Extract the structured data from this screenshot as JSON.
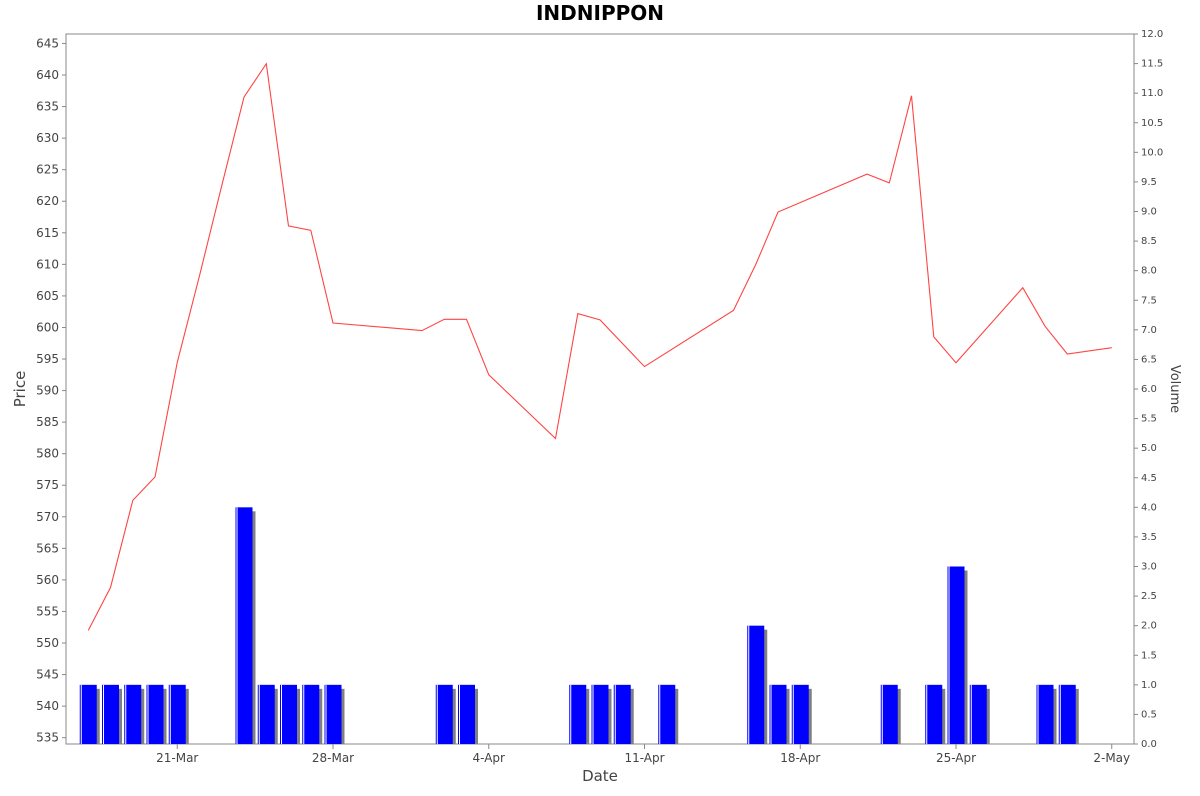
{
  "chart_data": {
    "type": "line",
    "title": "INDNIPPON",
    "xlabel": "Date",
    "ylabel": "Price",
    "y2label": "Volume",
    "x_ticks": [
      {
        "label": "21-Mar",
        "date": "2023-03-21"
      },
      {
        "label": "28-Mar",
        "date": "2023-03-28"
      },
      {
        "label": "4-Apr",
        "date": "2023-04-04"
      },
      {
        "label": "11-Apr",
        "date": "2023-04-11"
      },
      {
        "label": "18-Apr",
        "date": "2023-04-18"
      },
      {
        "label": "25-Apr",
        "date": "2023-04-25"
      },
      {
        "label": "2-May",
        "date": "2023-05-02"
      }
    ],
    "x_range": [
      "2023-03-16",
      "2023-05-03"
    ],
    "price_axis": {
      "min": 534,
      "max": 646.5,
      "ticks": [
        535,
        540,
        545,
        550,
        555,
        560,
        565,
        570,
        575,
        580,
        585,
        590,
        595,
        600,
        605,
        610,
        615,
        620,
        625,
        630,
        635,
        640,
        645
      ]
    },
    "volume_axis": {
      "min": 0,
      "max": 12,
      "ticks": [
        "0.0",
        "0.5",
        "1.0",
        "1.5",
        "2.0",
        "2.5",
        "3.0",
        "3.5",
        "4.0",
        "4.5",
        "5.0",
        "5.5",
        "6.0",
        "6.5",
        "7.0",
        "7.5",
        "8.0",
        "8.5",
        "9.0",
        "9.5",
        "10.0",
        "10.5",
        "11.0",
        "11.5",
        "12.0"
      ]
    },
    "grid": false,
    "series": [
      {
        "kind": "price-line",
        "color": "#ff4444",
        "points": [
          {
            "date": "2023-03-17",
            "value": 552.0
          },
          {
            "date": "2023-03-18",
            "value": 558.8
          },
          {
            "date": "2023-03-19",
            "value": 572.6
          },
          {
            "date": "2023-03-20",
            "value": 576.3
          },
          {
            "date": "2023-03-21",
            "value": 594.5
          },
          {
            "date": "2023-03-22",
            "value": 608.2
          },
          {
            "date": "2023-03-23",
            "value": 622.5
          },
          {
            "date": "2023-03-24",
            "value": 636.5
          },
          {
            "date": "2023-03-25",
            "value": 641.8
          },
          {
            "date": "2023-03-26",
            "value": 616.1
          },
          {
            "date": "2023-03-27",
            "value": 615.4
          },
          {
            "date": "2023-03-28",
            "value": 600.7
          },
          {
            "date": "2023-04-01",
            "value": 599.5
          },
          {
            "date": "2023-04-02",
            "value": 601.3
          },
          {
            "date": "2023-04-03",
            "value": 601.3
          },
          {
            "date": "2023-04-04",
            "value": 592.5
          },
          {
            "date": "2023-04-07",
            "value": 582.4
          },
          {
            "date": "2023-04-08",
            "value": 602.2
          },
          {
            "date": "2023-04-09",
            "value": 601.2
          },
          {
            "date": "2023-04-11",
            "value": 593.8
          },
          {
            "date": "2023-04-15",
            "value": 602.7
          },
          {
            "date": "2023-04-16",
            "value": 610.0
          },
          {
            "date": "2023-04-17",
            "value": 618.3
          },
          {
            "date": "2023-04-21",
            "value": 624.3
          },
          {
            "date": "2023-04-22",
            "value": 622.9
          },
          {
            "date": "2023-04-23",
            "value": 636.7
          },
          {
            "date": "2023-04-24",
            "value": 598.5
          },
          {
            "date": "2023-04-25",
            "value": 594.4
          },
          {
            "date": "2023-04-28",
            "value": 606.3
          },
          {
            "date": "2023-04-29",
            "value": 600.2
          },
          {
            "date": "2023-04-30",
            "value": 595.8
          },
          {
            "date": "2023-05-02",
            "value": 596.8
          }
        ]
      },
      {
        "kind": "volume-bars",
        "color": "#0000ff",
        "shadow": "#808080",
        "points": [
          {
            "date": "2023-03-17",
            "value": 1
          },
          {
            "date": "2023-03-18",
            "value": 1
          },
          {
            "date": "2023-03-19",
            "value": 1
          },
          {
            "date": "2023-03-20",
            "value": 1
          },
          {
            "date": "2023-03-21",
            "value": 1
          },
          {
            "date": "2023-03-24",
            "value": 4
          },
          {
            "date": "2023-03-25",
            "value": 1
          },
          {
            "date": "2023-03-26",
            "value": 1
          },
          {
            "date": "2023-03-27",
            "value": 1
          },
          {
            "date": "2023-03-28",
            "value": 1
          },
          {
            "date": "2023-04-02",
            "value": 1
          },
          {
            "date": "2023-04-03",
            "value": 1
          },
          {
            "date": "2023-04-08",
            "value": 1
          },
          {
            "date": "2023-04-09",
            "value": 1
          },
          {
            "date": "2023-04-10",
            "value": 1
          },
          {
            "date": "2023-04-12",
            "value": 1
          },
          {
            "date": "2023-04-16",
            "value": 2
          },
          {
            "date": "2023-04-17",
            "value": 1
          },
          {
            "date": "2023-04-18",
            "value": 1
          },
          {
            "date": "2023-04-22",
            "value": 1
          },
          {
            "date": "2023-04-24",
            "value": 1
          },
          {
            "date": "2023-04-25",
            "value": 3
          },
          {
            "date": "2023-04-26",
            "value": 1
          },
          {
            "date": "2023-04-29",
            "value": 1
          },
          {
            "date": "2023-04-30",
            "value": 1
          }
        ]
      }
    ]
  }
}
